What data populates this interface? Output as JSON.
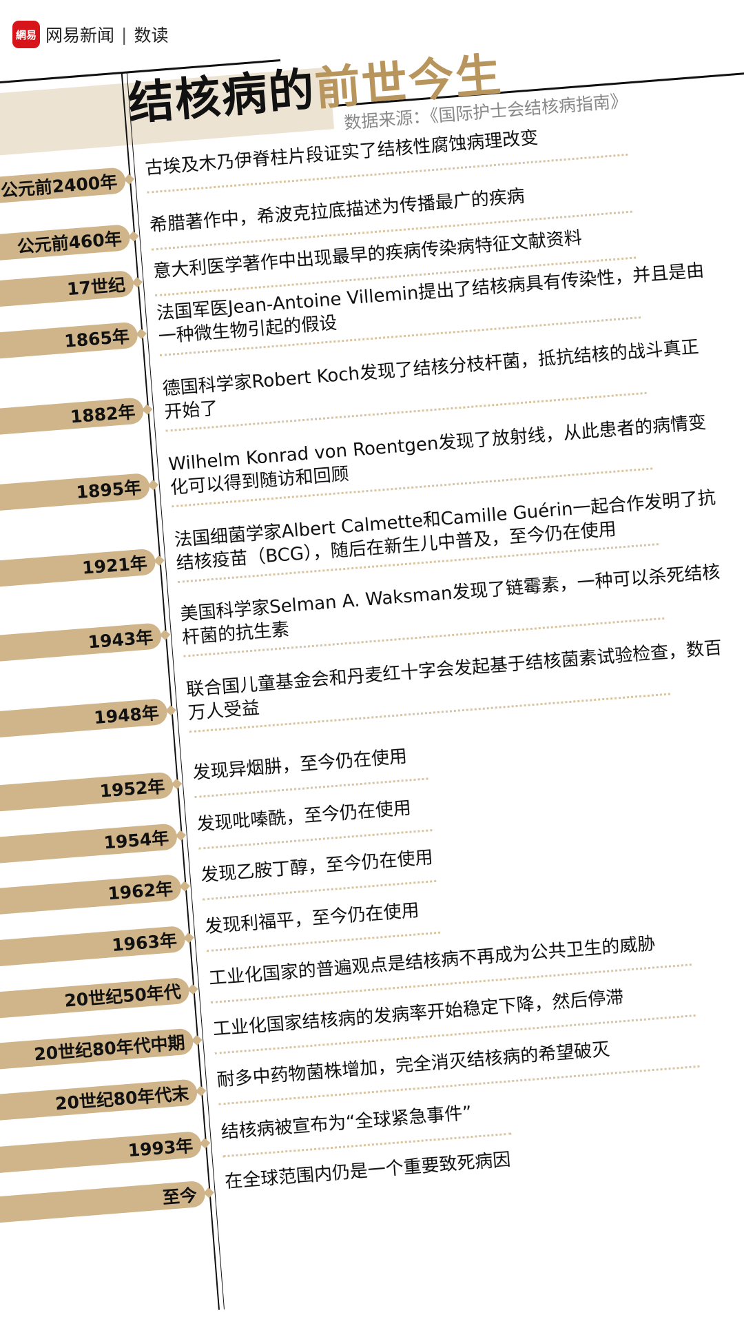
{
  "brand": {
    "logo_mark": "網易",
    "name": "网易新闻",
    "section": "数读",
    "accent": "#d7141a"
  },
  "title": {
    "black": "结核病的",
    "gold": "前世今生",
    "gold_color": "#b8955d"
  },
  "source": "数据来源：《国际护士会结核病指南》",
  "colors": {
    "pill": "#cfb589",
    "dots": "#d8c4a0"
  },
  "timeline": [
    {
      "date": "公元前2400年",
      "text": "古埃及木乃伊脊柱片段证实了结核性腐蚀病理改变"
    },
    {
      "date": "公元前460年",
      "text": "希腊著作中，希波克拉底描述为传播最广的疾病"
    },
    {
      "date": "17世纪",
      "text": "意大利医学著作中出现最早的疾病传染病特征文献资料"
    },
    {
      "date": "1865年",
      "text": "法国军医Jean-Antoine Villemin提出了结核病具有传染性，并且是由一种微生物引起的假设"
    },
    {
      "date": "1882年",
      "text": "德国科学家Robert Koch发现了结核分枝杆菌，抵抗结核的战斗真正开始了"
    },
    {
      "date": "1895年",
      "text": "Wilhelm Konrad von Roentgen发现了放射线，从此患者的病情变化可以得到随访和回顾"
    },
    {
      "date": "1921年",
      "text": "法国细菌学家Albert Calmette和Camille Guérin一起合作发明了抗结核疫苗（BCG），随后在新生儿中普及，至今仍在使用"
    },
    {
      "date": "1943年",
      "text": "美国科学家Selman A. Waksman发现了链霉素，一种可以杀死结核杆菌的抗生素"
    },
    {
      "date": "1948年",
      "text": "联合国儿童基金会和丹麦红十字会发起基于结核菌素试验检查，数百万人受益"
    },
    {
      "date": "1952年",
      "text": "发现异烟肼，至今仍在使用"
    },
    {
      "date": "1954年",
      "text": "发现吡嗪酰，至今仍在使用"
    },
    {
      "date": "1962年",
      "text": "发现乙胺丁醇，至今仍在使用"
    },
    {
      "date": "1963年",
      "text": "发现利福平，至今仍在使用"
    },
    {
      "date": "20世纪50年代",
      "text": "工业化国家的普遍观点是结核病不再成为公共卫生的威胁"
    },
    {
      "date": "20世纪80年代中期",
      "text": "工业化国家结核病的发病率开始稳定下降，然后停滞"
    },
    {
      "date": "20世纪80年代末",
      "text": "耐多中药物菌株增加，完全消灭结核病的希望破灭"
    },
    {
      "date": "1993年",
      "text": "结核病被宣布为“全球紧急事件”"
    },
    {
      "date": "至今",
      "text": "在全球范围内仍是一个重要致死病因"
    }
  ]
}
